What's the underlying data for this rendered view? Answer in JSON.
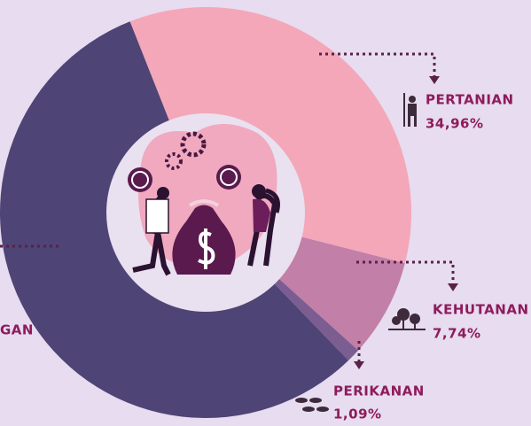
{
  "chart_data": {
    "type": "pie",
    "categories": [
      "PERTANIAN",
      "KEHUTANAN",
      "PERIKANAN",
      "GAN"
    ],
    "values": [
      34.96,
      7.74,
      1.09,
      56.21
    ],
    "value_labels": [
      "34,96%",
      "7,74%",
      "1,09%",
      null
    ],
    "colors": [
      "#f4a7b9",
      "#c27fa8",
      "#7b5d92",
      "#4e4475"
    ]
  }
}
